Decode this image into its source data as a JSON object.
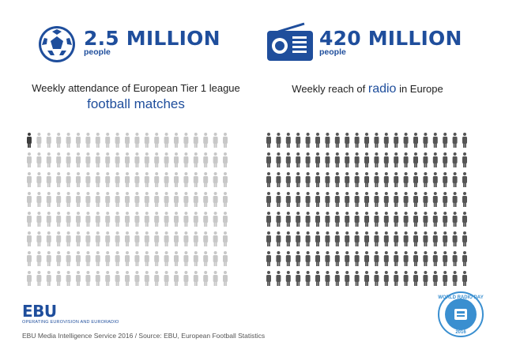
{
  "header": {
    "left_stat": "2.5 MILLION",
    "left_unit": "people",
    "right_stat": "420 MILLION",
    "right_unit": "people"
  },
  "captions": {
    "left_line1": "Weekly attendance of European Tier 1 league",
    "left_line2": "football matches",
    "right_prefix": "Weekly reach of ",
    "right_highlight": "radio",
    "right_suffix": " in Europe"
  },
  "icons": {
    "left": "football-icon",
    "right": "radio-icon",
    "badge": "world-radio-day-badge"
  },
  "colors": {
    "brand_blue": "#1f4e9c",
    "highlight_person": "#3d3d3d",
    "inactive_person": "#c8c8c8",
    "radio_person": "#555555",
    "badge_blue": "#3a8fd0"
  },
  "chart_data": [
    {
      "type": "pictogram",
      "title": "Weekly attendance of European Tier 1 league football matches",
      "value_millions": 2.5,
      "grid_rows": 8,
      "grid_cols": 21,
      "highlighted_icons": 1
    },
    {
      "type": "pictogram",
      "title": "Weekly reach of radio in Europe",
      "value_millions": 420,
      "grid_rows": 8,
      "grid_cols": 21,
      "highlighted_icons": 168
    }
  ],
  "footer": {
    "logo": "EBU",
    "tagline": "OPERATING EUROVISION AND EURORADIO",
    "source": "EBU Media Intelligence Service 2016 / Source: EBU, European Football Statistics"
  },
  "badge": {
    "text_top": "WORLD RADIO DAY",
    "year": "2016"
  }
}
